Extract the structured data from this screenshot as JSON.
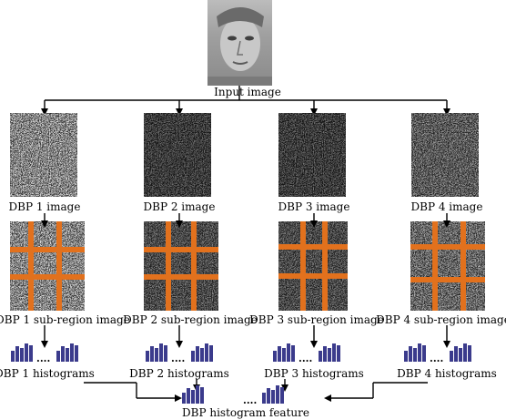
{
  "input_label": "Input image",
  "branches": [
    {
      "dbp_label": "DBP 1 image",
      "sub_label": "DBP 1 sub-region image",
      "hist_label": "DBP 1 histograms"
    },
    {
      "dbp_label": "DBP 2 image",
      "sub_label": "DBP 2 sub-region image",
      "hist_label": "DBP 2 histograms"
    },
    {
      "dbp_label": "DBP 3 image",
      "sub_label": "DBP 3 sub-region image",
      "hist_label": "DBP 3 histograms"
    },
    {
      "dbp_label": "DBP 4 image",
      "sub_label": "DBP 4 sub-region image",
      "hist_label": "DBP 4 histograms"
    }
  ],
  "ellipsis": "....",
  "feature_label": "DBP histogram feature",
  "colors": {
    "grid": "#e2711d",
    "bar": "#3b3b8c",
    "arrow": "#000000"
  },
  "hist_levels": [
    0.55,
    0.75,
    0.7,
    0.9,
    0.8,
    0.95,
    0.6
  ]
}
